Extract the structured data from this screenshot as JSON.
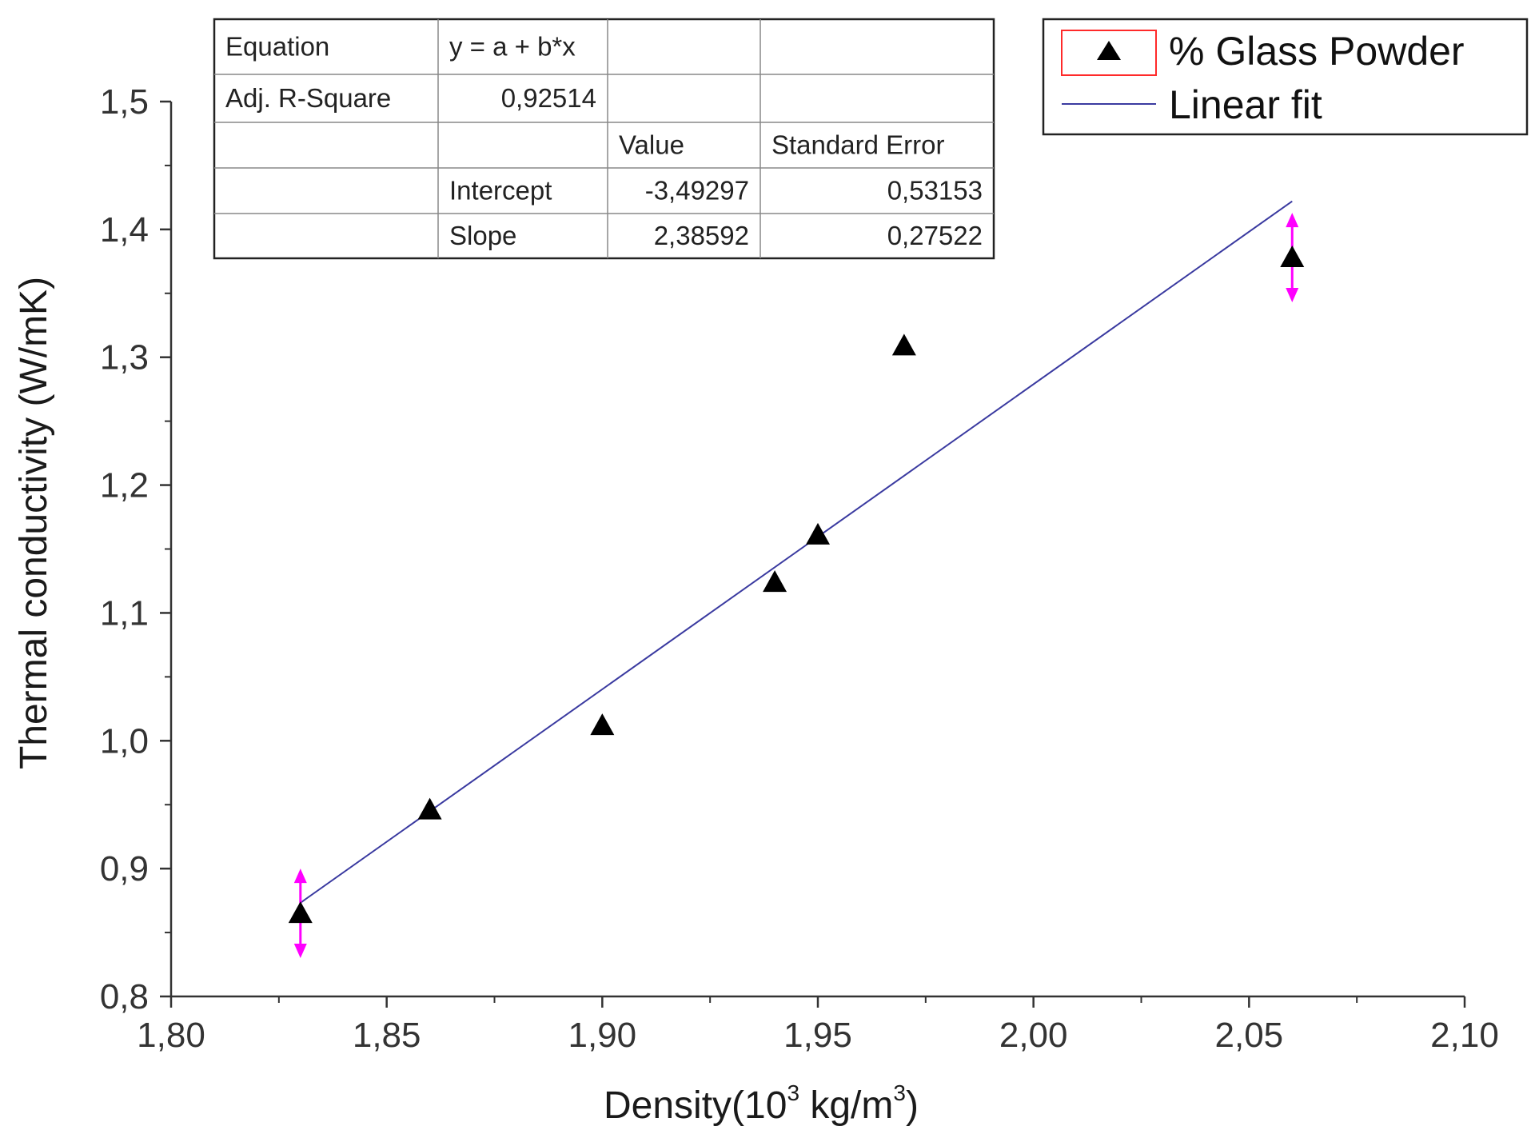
{
  "chart_data": {
    "type": "scatter",
    "xlabel_main": "Density(10",
    "xlabel_exp1": "3",
    "xlabel_mid": " kg/m",
    "xlabel_exp2": "3",
    "xlabel_end": ")",
    "ylabel": "Thermal conductivity (W/mK)",
    "xlim": [
      1.8,
      2.1
    ],
    "ylim": [
      0.8,
      1.5
    ],
    "x_ticks": [
      1.8,
      1.85,
      1.9,
      1.95,
      2.0,
      2.05,
      2.1
    ],
    "x_tick_labels": [
      "1,80",
      "1,85",
      "1,90",
      "1,95",
      "2,00",
      "2,05",
      "2,10"
    ],
    "x_minor_ticks": [
      1.825,
      1.875,
      1.925,
      1.975,
      2.025,
      2.075
    ],
    "y_ticks": [
      0.8,
      0.9,
      1.0,
      1.1,
      1.2,
      1.3,
      1.4,
      1.5
    ],
    "y_tick_labels": [
      "0,8",
      "0,9",
      "1,0",
      "1,1",
      "1,2",
      "1,3",
      "1,4",
      "1,5"
    ],
    "y_minor_ticks": [
      0.85,
      0.95,
      1.05,
      1.15,
      1.25,
      1.35,
      1.45
    ],
    "grid": false,
    "legend_position": "top-right",
    "series": [
      {
        "name": "% Glass Powder",
        "marker": "triangle",
        "color": "#000000",
        "x": [
          1.83,
          1.86,
          1.9,
          1.94,
          1.95,
          1.97,
          2.06
        ],
        "y": [
          0.865,
          0.946,
          1.012,
          1.124,
          1.161,
          1.309,
          1.378
        ],
        "error_bars": [
          {
            "x": 1.83,
            "y": 0.865,
            "err": 0.03
          },
          {
            "x": 2.06,
            "y": 1.378,
            "err": 0.03
          }
        ],
        "error_color": "#ff00ff"
      },
      {
        "name": "Linear fit",
        "type": "line",
        "color": "#3a3aa0",
        "intercept": -3.49297,
        "slope": 2.38592,
        "x_range": [
          1.83,
          2.06
        ]
      }
    ],
    "fit_table": {
      "rows": [
        [
          "Equation",
          "y = a + b*x",
          "",
          ""
        ],
        [
          "Adj. R-Square",
          "0,92514",
          "",
          ""
        ],
        [
          "",
          "",
          "Value",
          "Standard Error"
        ],
        [
          "",
          "Intercept",
          "-3,49297",
          "0,53153"
        ],
        [
          "",
          "Slope",
          "2,38592",
          "0,27522"
        ]
      ]
    }
  }
}
